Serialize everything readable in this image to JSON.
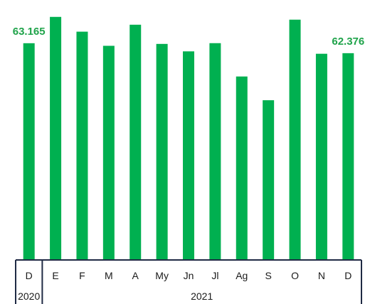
{
  "chart_data": {
    "type": "bar",
    "categories": [
      "D",
      "E",
      "F",
      "M",
      "A",
      "My",
      "Jn",
      "Jl",
      "Ag",
      "S",
      "O",
      "N",
      "D"
    ],
    "groups": [
      {
        "label": "2020",
        "count": 1
      },
      {
        "label": "2021",
        "count": 12
      }
    ],
    "values": [
      63.165,
      65.25,
      64.08,
      62.96,
      64.63,
      63.11,
      62.52,
      63.17,
      60.53,
      58.65,
      65.03,
      62.33,
      62.376
    ],
    "data_labels": [
      {
        "index": 0,
        "text": "63.165"
      },
      {
        "index": 12,
        "text": "62.376"
      }
    ],
    "ylim": [
      46.0,
      65.8
    ],
    "bar_color": "#00b050",
    "label_color": "#1fa34a",
    "grid": false,
    "legend": "none"
  }
}
